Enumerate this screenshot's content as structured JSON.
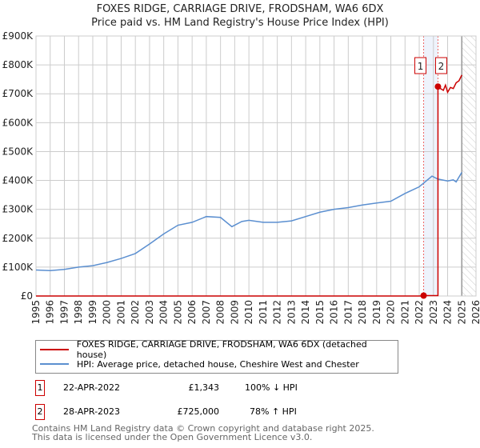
{
  "chart_data": {
    "type": "line",
    "title": "FOXES RIDGE, CARRIAGE DRIVE, FRODSHAM, WA6 6DX",
    "subtitle": "Price paid vs. HM Land Registry's House Price Index (HPI)",
    "xlim": [
      1995,
      2026
    ],
    "ylim": [
      0,
      900000
    ],
    "x_ticks": [
      "1995",
      "1996",
      "1997",
      "1998",
      "1999",
      "2000",
      "2001",
      "2002",
      "2003",
      "2004",
      "2005",
      "2006",
      "2007",
      "2008",
      "2009",
      "2010",
      "2011",
      "2012",
      "2013",
      "2014",
      "2015",
      "2016",
      "2017",
      "2018",
      "2019",
      "2020",
      "2021",
      "2022",
      "2023",
      "2024",
      "2025",
      "2026"
    ],
    "y_ticks": [
      {
        "v": 0,
        "l": "£0"
      },
      {
        "v": 100000,
        "l": "£100K"
      },
      {
        "v": 200000,
        "l": "£200K"
      },
      {
        "v": 300000,
        "l": "£300K"
      },
      {
        "v": 400000,
        "l": "£400K"
      },
      {
        "v": 500000,
        "l": "£500K"
      },
      {
        "v": 600000,
        "l": "£600K"
      },
      {
        "v": 700000,
        "l": "£700K"
      },
      {
        "v": 800000,
        "l": "£800K"
      },
      {
        "v": 900000,
        "l": "£900K"
      }
    ],
    "grid": true,
    "series": [
      {
        "name": "FOXES RIDGE, CARRIAGE DRIVE, FRODSHAM, WA6 6DX (detached house)",
        "color": "#cc0000",
        "points": [
          [
            1995,
            0
          ],
          [
            2022.31,
            0
          ],
          [
            2022.31,
            1343
          ],
          [
            2023.32,
            1343
          ],
          [
            2023.32,
            725000
          ],
          [
            2023.5,
            718000
          ],
          [
            2023.7,
            712000
          ],
          [
            2023.85,
            730000
          ],
          [
            2024.0,
            705000
          ],
          [
            2024.2,
            722000
          ],
          [
            2024.4,
            718000
          ],
          [
            2024.6,
            738000
          ],
          [
            2024.8,
            745000
          ],
          [
            2025.0,
            765000
          ]
        ]
      },
      {
        "name": "HPI: Average price, detached house, Cheshire West and Chester",
        "color": "#5b8fd0",
        "points": [
          [
            1995,
            90000
          ],
          [
            1996,
            88000
          ],
          [
            1997,
            92000
          ],
          [
            1998,
            100000
          ],
          [
            1999,
            105000
          ],
          [
            2000,
            116000
          ],
          [
            2001,
            130000
          ],
          [
            2002,
            147000
          ],
          [
            2003,
            180000
          ],
          [
            2004,
            215000
          ],
          [
            2005,
            245000
          ],
          [
            2006,
            255000
          ],
          [
            2007,
            275000
          ],
          [
            2008,
            272000
          ],
          [
            2008.8,
            240000
          ],
          [
            2009.5,
            258000
          ],
          [
            2010,
            262000
          ],
          [
            2011,
            255000
          ],
          [
            2012,
            255000
          ],
          [
            2013,
            260000
          ],
          [
            2014,
            275000
          ],
          [
            2015,
            290000
          ],
          [
            2016,
            300000
          ],
          [
            2017,
            306000
          ],
          [
            2018,
            315000
          ],
          [
            2019,
            322000
          ],
          [
            2020,
            328000
          ],
          [
            2021,
            355000
          ],
          [
            2022,
            378000
          ],
          [
            2022.9,
            415000
          ],
          [
            2023.3,
            405000
          ],
          [
            2024,
            398000
          ],
          [
            2024.4,
            402000
          ],
          [
            2024.6,
            395000
          ],
          [
            2025,
            428000
          ]
        ]
      }
    ],
    "sales": [
      {
        "n": "1",
        "x": 2022.31,
        "y": 1343
      },
      {
        "n": "2",
        "x": 2023.32,
        "y": 725000
      }
    ],
    "forecast_start": 2025
  },
  "legend": {
    "red": "FOXES RIDGE, CARRIAGE DRIVE, FRODSHAM, WA6 6DX (detached house)",
    "blue": "HPI: Average price, detached house, Cheshire West and Chester"
  },
  "table": [
    {
      "n": "1",
      "date": "22-APR-2022",
      "price": "£1,343",
      "hpi": "100% ↓ HPI"
    },
    {
      "n": "2",
      "date": "28-APR-2023",
      "price": "£725,000",
      "hpi": "78% ↑ HPI"
    }
  ],
  "footer": {
    "line1": "Contains HM Land Registry data © Crown copyright and database right 2025.",
    "line2": "This data is licensed under the Open Government Licence v3.0."
  }
}
